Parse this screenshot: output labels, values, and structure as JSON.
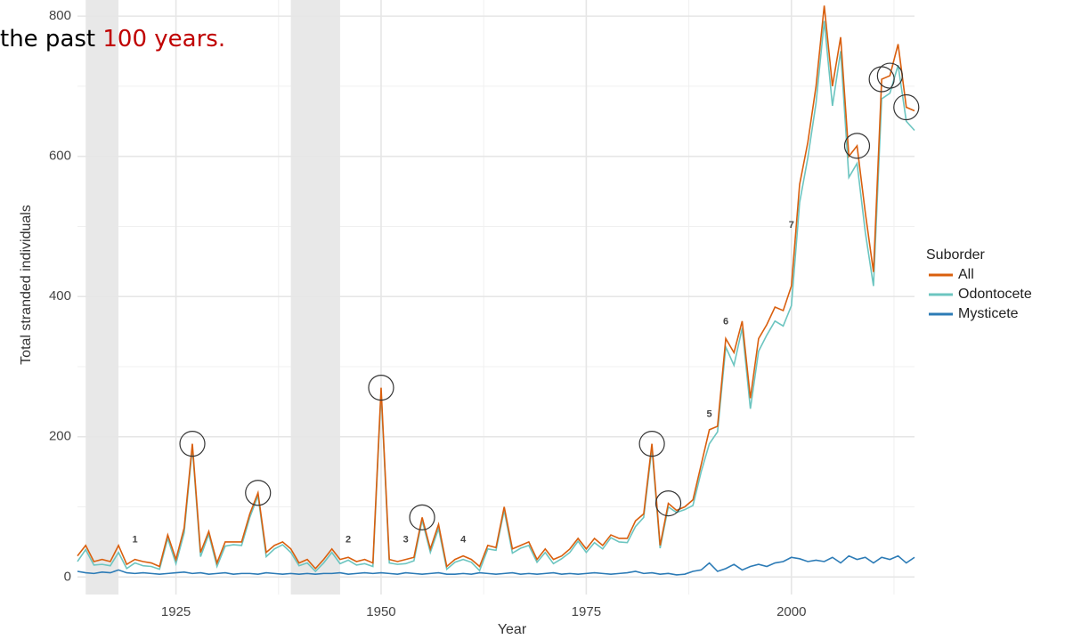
{
  "chart_data": {
    "type": "line",
    "title_parts": [
      {
        "text": "the past ",
        "color": "#000000"
      },
      {
        "text": "100 years.",
        "color": "#c00000"
      }
    ],
    "x_label": "Year",
    "y_label": "Total stranded individuals",
    "legend_title": "Suborder",
    "x": [
      1913,
      1914,
      1915,
      1916,
      1917,
      1918,
      1919,
      1920,
      1921,
      1922,
      1923,
      1924,
      1925,
      1926,
      1927,
      1928,
      1929,
      1930,
      1931,
      1932,
      1933,
      1934,
      1935,
      1936,
      1937,
      1938,
      1939,
      1940,
      1941,
      1942,
      1943,
      1944,
      1945,
      1946,
      1947,
      1948,
      1949,
      1950,
      1951,
      1952,
      1953,
      1954,
      1955,
      1956,
      1957,
      1958,
      1959,
      1960,
      1961,
      1962,
      1963,
      1964,
      1965,
      1966,
      1967,
      1968,
      1969,
      1970,
      1971,
      1972,
      1973,
      1974,
      1975,
      1976,
      1977,
      1978,
      1979,
      1980,
      1981,
      1982,
      1983,
      1984,
      1985,
      1986,
      1987,
      1988,
      1989,
      1990,
      1991,
      1992,
      1993,
      1994,
      1995,
      1996,
      1997,
      1998,
      1999,
      2000,
      2001,
      2002,
      2003,
      2004,
      2005,
      2006,
      2007,
      2008,
      2009,
      2010,
      2011,
      2012,
      2013,
      2014,
      2015
    ],
    "series": [
      {
        "name": "All",
        "color": "#d95f0e",
        "values": [
          30,
          45,
          22,
          25,
          22,
          45,
          18,
          25,
          22,
          20,
          15,
          60,
          25,
          70,
          190,
          35,
          65,
          20,
          50,
          50,
          50,
          90,
          120,
          35,
          45,
          50,
          40,
          20,
          25,
          12,
          25,
          40,
          25,
          28,
          22,
          25,
          20,
          270,
          25,
          22,
          25,
          28,
          85,
          40,
          75,
          15,
          25,
          30,
          25,
          15,
          45,
          42,
          100,
          40,
          45,
          50,
          25,
          40,
          25,
          30,
          40,
          55,
          40,
          55,
          45,
          60,
          55,
          55,
          80,
          90,
          190,
          45,
          105,
          95,
          100,
          110,
          160,
          210,
          215,
          340,
          320,
          365,
          255,
          340,
          360,
          385,
          380,
          415,
          560,
          620,
          700,
          815,
          700,
          770,
          600,
          615,
          520,
          435,
          710,
          715,
          760,
          670,
          665
        ]
      },
      {
        "name": "Odontocete",
        "color": "#6cc5c0",
        "values": [
          22,
          39,
          17,
          18,
          16,
          35,
          12,
          20,
          16,
          15,
          11,
          55,
          19,
          63,
          185,
          29,
          61,
          15,
          44,
          46,
          45,
          85,
          116,
          29,
          40,
          46,
          35,
          16,
          20,
          8,
          20,
          35,
          19,
          24,
          17,
          19,
          15,
          264,
          20,
          18,
          19,
          23,
          81,
          35,
          69,
          11,
          21,
          25,
          21,
          9,
          40,
          38,
          95,
          34,
          41,
          45,
          21,
          35,
          19,
          26,
          35,
          51,
          35,
          49,
          40,
          56,
          50,
          49,
          72,
          85,
          184,
          41,
          100,
          92,
          96,
          102,
          150,
          190,
          207,
          328,
          302,
          355,
          240,
          322,
          345,
          365,
          358,
          387,
          534,
          598,
          676,
          793,
          672,
          750,
          570,
          590,
          492,
          415,
          682,
          690,
          730,
          650,
          637
        ]
      },
      {
        "name": "Mysticete",
        "color": "#2c7bb6",
        "values": [
          8,
          6,
          5,
          7,
          6,
          10,
          6,
          5,
          6,
          5,
          4,
          5,
          6,
          7,
          5,
          6,
          4,
          5,
          6,
          4,
          5,
          5,
          4,
          6,
          5,
          4,
          5,
          4,
          5,
          4,
          5,
          5,
          6,
          4,
          5,
          6,
          5,
          6,
          5,
          4,
          6,
          5,
          4,
          5,
          6,
          4,
          4,
          5,
          4,
          6,
          5,
          4,
          5,
          6,
          4,
          5,
          4,
          5,
          6,
          4,
          5,
          4,
          5,
          6,
          5,
          4,
          5,
          6,
          8,
          5,
          6,
          4,
          5,
          3,
          4,
          8,
          10,
          20,
          8,
          12,
          18,
          10,
          15,
          18,
          15,
          20,
          22,
          28,
          26,
          22,
          24,
          22,
          28,
          20,
          30,
          25,
          28,
          20,
          28,
          25,
          30,
          20,
          28
        ]
      }
    ],
    "xlim": [
      1913,
      2015
    ],
    "xticks": [
      1925,
      1950,
      1975,
      2000
    ],
    "ylim": [
      -25,
      823
    ],
    "yticks": [
      0,
      200,
      400,
      600,
      800
    ],
    "grid": true,
    "shaded_periods": [
      [
        1914,
        1918
      ],
      [
        1939,
        1945
      ]
    ],
    "circled_years": [
      1927,
      1935,
      1950,
      1955,
      1983,
      1985,
      2008,
      2011,
      2012,
      2014
    ],
    "annotations": [
      {
        "text": "1",
        "x": 1920,
        "y": 53
      },
      {
        "text": "2",
        "x": 1946,
        "y": 53
      },
      {
        "text": "3",
        "x": 1953,
        "y": 53
      },
      {
        "text": "4",
        "x": 1960,
        "y": 53
      },
      {
        "text": "5",
        "x": 1990,
        "y": 232
      },
      {
        "text": "6",
        "x": 1992,
        "y": 364
      },
      {
        "text": "7",
        "x": 2000,
        "y": 502
      }
    ],
    "legend_position": "right"
  }
}
